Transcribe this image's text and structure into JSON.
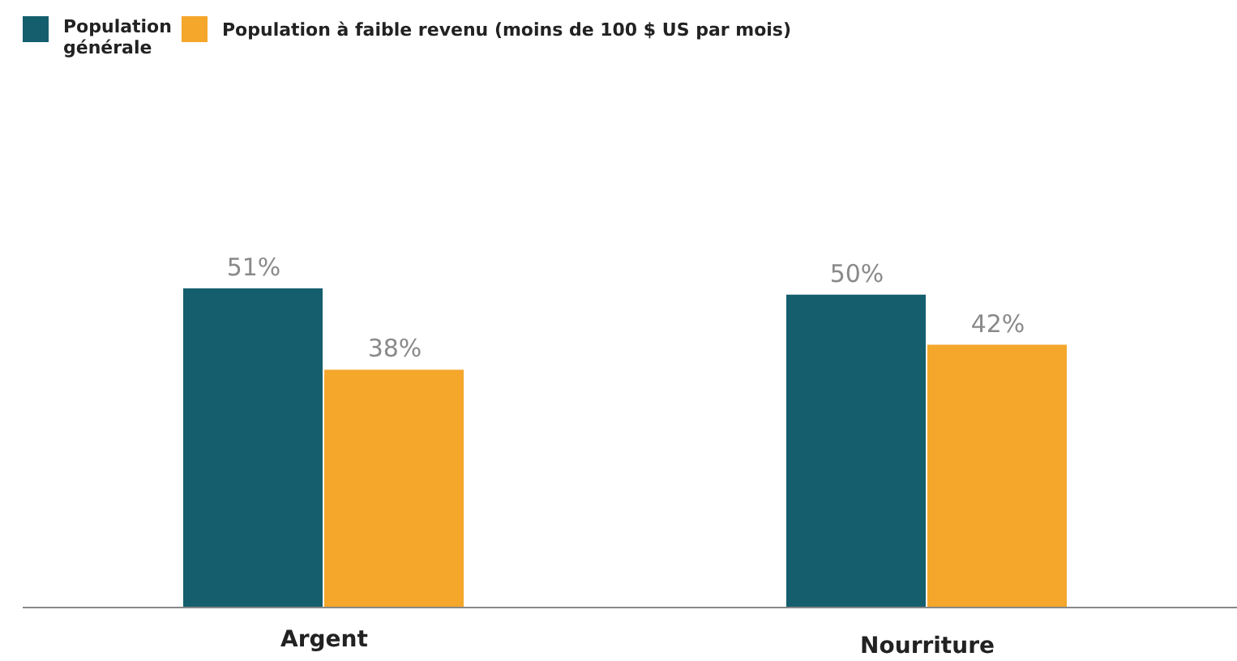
{
  "chart_data": {
    "type": "bar",
    "categories": [
      "Argent",
      "Nourriture"
    ],
    "series": [
      {
        "name": "Population générale",
        "color": "#155e6e",
        "values": [
          51,
          50
        ],
        "value_labels": [
          "51%",
          "50%"
        ]
      },
      {
        "name": "Population à faible revenu (moins de 100 $ US par mois)",
        "color": "#f4a72b",
        "values": [
          38,
          42
        ],
        "value_labels": [
          "38%",
          "42%"
        ]
      }
    ],
    "legend": "top left"
  }
}
